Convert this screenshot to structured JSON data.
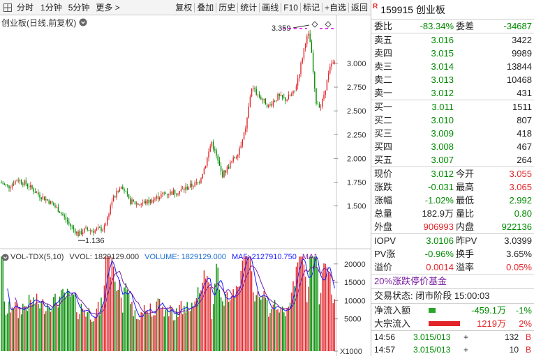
{
  "toolbar": {
    "items": [
      "分时",
      "1分钟",
      "5分钟",
      "更多 >",
      "复权",
      "叠加",
      "历史",
      "统计",
      "画线",
      "F10",
      "标记",
      "+自选",
      "返回"
    ]
  },
  "chart": {
    "title": "创业板(日线,前复权)",
    "high_label": "3.359",
    "low_label": "1.136",
    "price_axis": [
      "3.000",
      "2.750",
      "2.500",
      "2.250",
      "2.000",
      "1.750",
      "1.500"
    ],
    "volume_axis": [
      "20000",
      "15000",
      "10000",
      "5000",
      "X1000"
    ],
    "volume_header": {
      "name": "VOL-TDX(5,10)",
      "vvol": "VVOL: 1829129.000",
      "volume": "VOLUME: 1829129.000",
      "ma5": "MA5: 2127910.750",
      "ma10": "MA1"
    },
    "colors": {
      "up": "#e2252a",
      "down": "#008a00",
      "ma5": "#1a1aff",
      "ma10": "#7a1fa2",
      "blue_text": "#1a6fd0"
    }
  },
  "quote": {
    "code_badge": "R",
    "title": "159915 创业板",
    "weibi": {
      "label": "委比",
      "value": "-83.34%"
    },
    "weicha": {
      "label": "委差",
      "value": "-34687"
    },
    "asks": [
      {
        "label": "卖五",
        "price": "3.016",
        "vol": "3422"
      },
      {
        "label": "卖四",
        "price": "3.015",
        "vol": "9989"
      },
      {
        "label": "卖三",
        "price": "3.014",
        "vol": "13844"
      },
      {
        "label": "卖二",
        "price": "3.013",
        "vol": "10468"
      },
      {
        "label": "卖一",
        "price": "3.012",
        "vol": "431"
      }
    ],
    "bids": [
      {
        "label": "买一",
        "price": "3.011",
        "vol": "1511"
      },
      {
        "label": "买二",
        "price": "3.010",
        "vol": "807"
      },
      {
        "label": "买三",
        "price": "3.009",
        "vol": "418"
      },
      {
        "label": "买四",
        "price": "3.008",
        "vol": "467"
      },
      {
        "label": "买五",
        "price": "3.007",
        "vol": "264"
      }
    ],
    "stats": [
      {
        "l1": "现价",
        "v1": "3.012",
        "c1": "green",
        "l2": "今开",
        "v2": "3.055",
        "c2": "red"
      },
      {
        "l1": "涨跌",
        "v1": "-0.031",
        "c1": "green",
        "l2": "最高",
        "v2": "3.065",
        "c2": "red"
      },
      {
        "l1": "涨幅",
        "v1": "-1.02%",
        "c1": "green",
        "l2": "最低",
        "v2": "2.992",
        "c2": "green"
      },
      {
        "l1": "总量",
        "v1": "182.9万",
        "c1": "black",
        "l2": "量比",
        "v2": "0.80",
        "c2": "green"
      },
      {
        "l1": "外盘",
        "v1": "906993",
        "c1": "red",
        "l2": "内盘",
        "v2": "922136",
        "c2": "green"
      }
    ],
    "iopv": [
      {
        "l1": "IOPV",
        "v1": "3.0106",
        "c1": "green",
        "l2": "昨PV",
        "v2": "3.0399",
        "c2": "black"
      },
      {
        "l1": "PV涨",
        "v1": "-0.96%",
        "c1": "green",
        "l2": "换手",
        "v2": "3.65%",
        "c2": "black"
      },
      {
        "l1": "溢价",
        "v1": "0.0014",
        "c1": "red",
        "l2": "溢率",
        "v2": "0.05%",
        "c2": "red"
      }
    ],
    "fund_type": "20%涨跌停价基金",
    "trade_status": "交易状态: 闭市阶段 15:00:03",
    "flows": [
      {
        "label": "净流入额",
        "value": "-459.1万",
        "pct": "-1%",
        "color": "green",
        "bar_color": "#2aa52a",
        "bar_fraction": 0.2
      },
      {
        "label": "大宗流入",
        "value": "1219万",
        "pct": "2%",
        "color": "red",
        "bar_color": "#e2252a",
        "bar_fraction": 0.9
      }
    ],
    "ticks": [
      {
        "time": "14:56",
        "price": "3.015/013",
        "sign": "+",
        "vol": "132",
        "flag": "B"
      },
      {
        "time": "14:57",
        "price": "3.015/013",
        "sign": "+",
        "vol": "10",
        "flag": "B"
      }
    ]
  }
}
